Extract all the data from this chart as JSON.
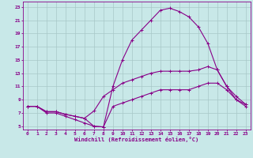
{
  "xlabel": "Windchill (Refroidissement éolien,°C)",
  "bg_color": "#c8e8e8",
  "line_color": "#880088",
  "grid_color": "#a8c8c8",
  "xlim": [
    -0.5,
    23.5
  ],
  "ylim": [
    4.5,
    23.8
  ],
  "xticks": [
    0,
    1,
    2,
    3,
    4,
    5,
    6,
    7,
    8,
    9,
    10,
    11,
    12,
    13,
    14,
    15,
    16,
    17,
    18,
    19,
    20,
    21,
    22,
    23
  ],
  "yticks": [
    5,
    7,
    9,
    11,
    13,
    15,
    17,
    19,
    21,
    23
  ],
  "curve1_x": [
    0,
    1,
    2,
    3,
    4,
    5,
    6,
    7,
    8,
    9,
    10,
    11,
    12,
    13,
    14,
    15,
    16,
    17,
    18,
    19,
    20,
    21,
    22,
    23
  ],
  "curve1_y": [
    8,
    8,
    7,
    7,
    6.5,
    6,
    5.5,
    5,
    4.9,
    11,
    15,
    18,
    19.5,
    21,
    22.5,
    22.8,
    22.3,
    21.5,
    20,
    17.5,
    13.5,
    11,
    9,
    8
  ],
  "curve2_x": [
    0,
    1,
    2,
    3,
    4,
    5,
    6,
    7,
    8,
    9,
    10,
    11,
    12,
    13,
    14,
    15,
    16,
    17,
    18,
    19,
    20,
    21,
    22,
    23
  ],
  "curve2_y": [
    8,
    8,
    7.2,
    7.2,
    6.8,
    6.5,
    6.2,
    7.3,
    9.5,
    10.5,
    11.5,
    12,
    12.5,
    13,
    13.3,
    13.3,
    13.3,
    13.3,
    13.5,
    14.0,
    13.5,
    11.0,
    9.5,
    8.3
  ],
  "curve3_x": [
    0,
    1,
    2,
    3,
    4,
    5,
    6,
    7,
    8,
    9,
    10,
    11,
    12,
    13,
    14,
    15,
    16,
    17,
    18,
    19,
    20,
    21,
    22,
    23
  ],
  "curve3_y": [
    8,
    8,
    7.2,
    7.2,
    6.8,
    6.5,
    6.2,
    5.0,
    4.9,
    8.0,
    8.5,
    9.0,
    9.5,
    10.0,
    10.5,
    10.5,
    10.5,
    10.5,
    11.0,
    11.5,
    11.5,
    10.5,
    9.0,
    8.3
  ]
}
